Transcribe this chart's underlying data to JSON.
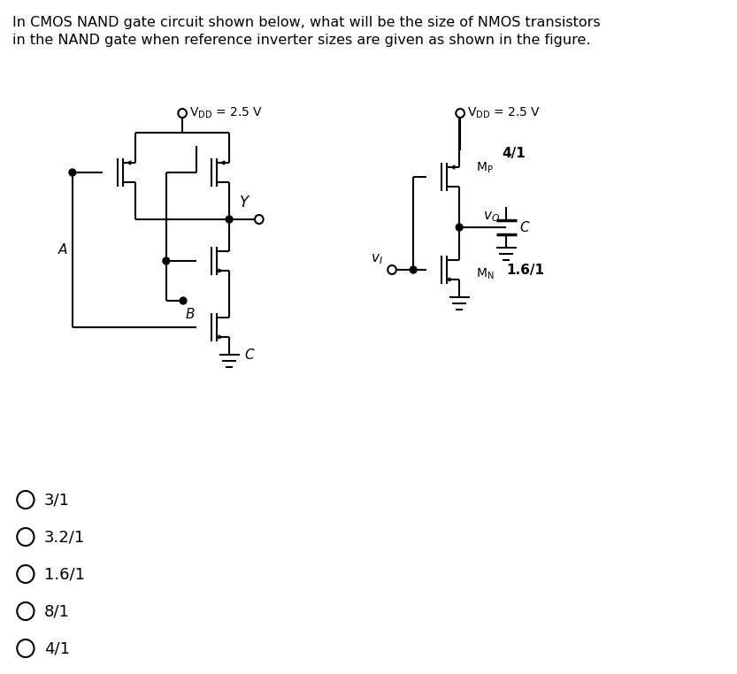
{
  "title_line1": "In CMOS NAND gate circuit shown below, what will be the size of NMOS transistors",
  "title_line2": "in the NAND gate when reference inverter sizes are given as shown in the figure.",
  "options": [
    "3/1",
    "3.2/1",
    "1.6/1",
    "8/1",
    "4/1"
  ],
  "bg_color": "#ffffff",
  "text_color": "#000000",
  "vdd_label": "V",
  "vdd_sub": "DD",
  "vdd_val": " = 2.5 V",
  "mp_label": "M",
  "mp_sub": "P",
  "mp_size": "4/1",
  "mn_label": "M",
  "mn_sub": "N",
  "mn_size": "1.6/1",
  "node_y": "Y",
  "node_vi": "v",
  "node_vi_sub": "I",
  "node_vo": "v",
  "node_vo_sub": "O",
  "node_a": "A",
  "node_b": "B",
  "node_c": "C"
}
